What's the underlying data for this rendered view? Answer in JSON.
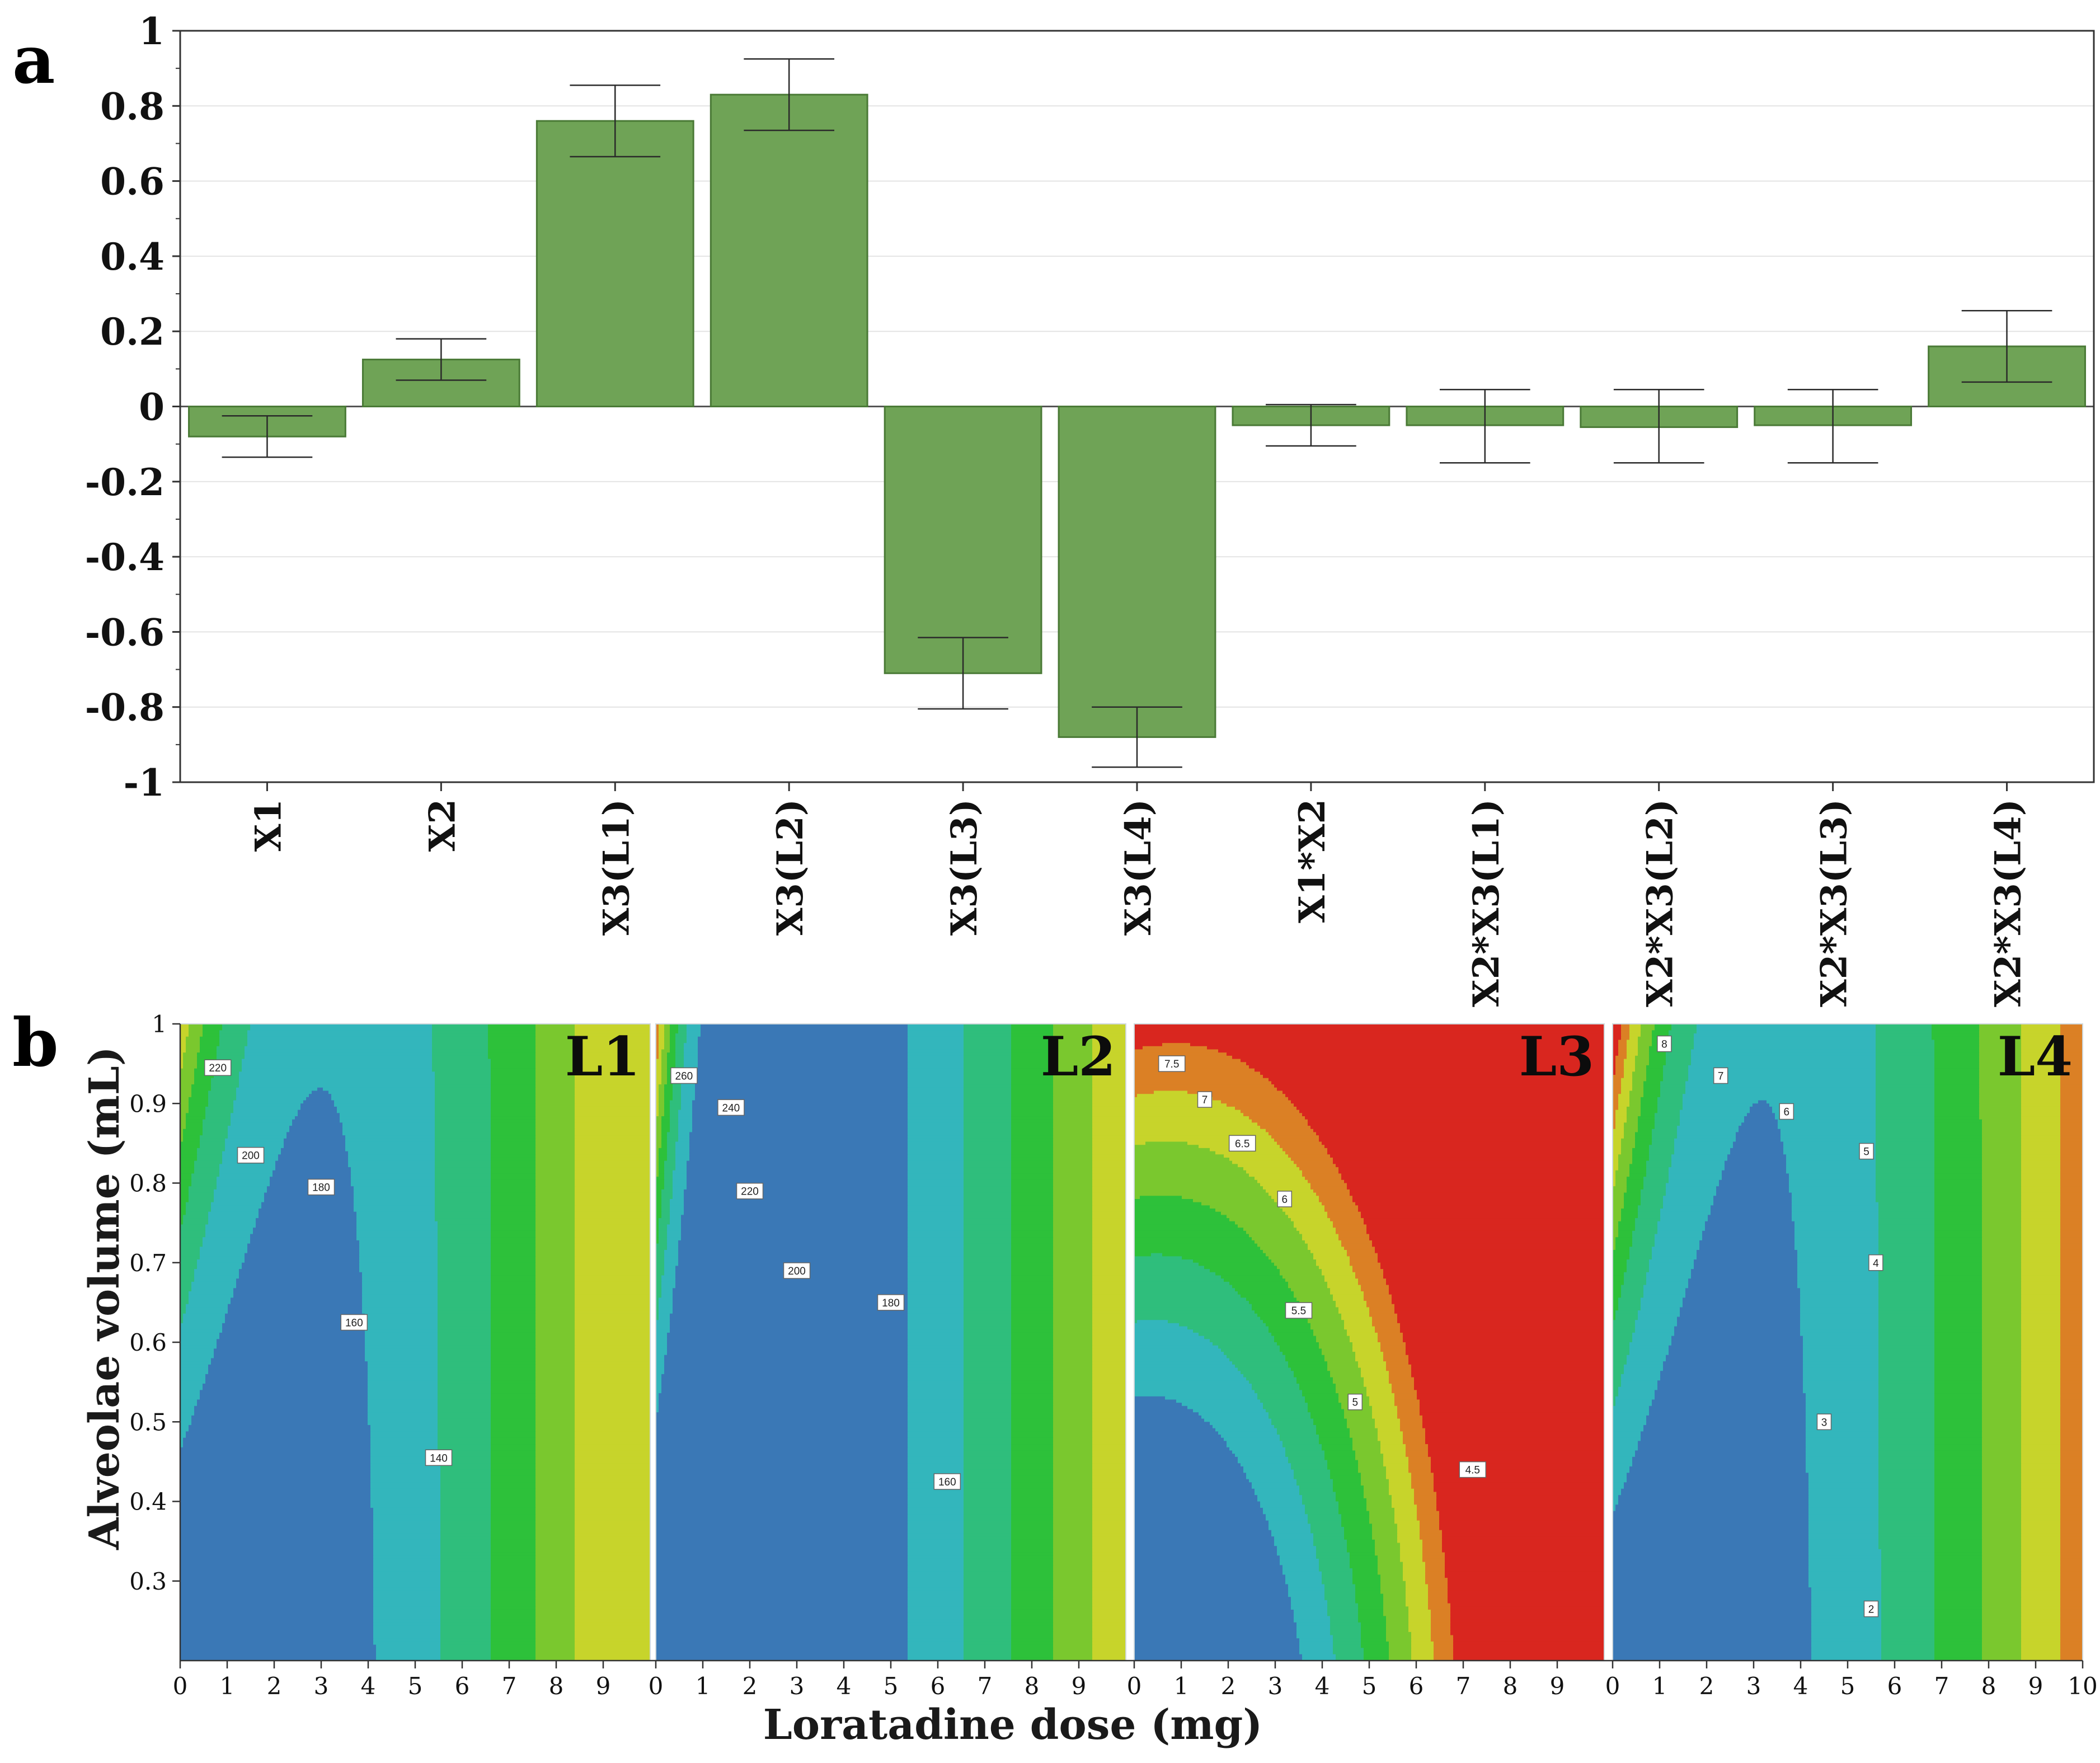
{
  "colors": {
    "bar_fill": "#6fa356",
    "bar_stroke": "#4a7a36",
    "grid": "#e4e4e4",
    "axis": "#333333",
    "contour": [
      "#3a78b6",
      "#33b6bc",
      "#2fbe7c",
      "#2dc13a",
      "#7ac82e",
      "#c7d42b",
      "#db8025",
      "#d9261f"
    ]
  },
  "chart_data": [
    {
      "id": "a",
      "type": "bar",
      "panel_label": "a",
      "title": "",
      "xlabel": "",
      "ylabel": "",
      "ylim": [
        -1,
        1
      ],
      "yticks": [
        1,
        0.8,
        0.6,
        0.4,
        0.2,
        0,
        -0.2,
        -0.4,
        -0.6,
        -0.8,
        -1
      ],
      "ytick_labels": [
        "1",
        "0.8",
        "0.6",
        "0.4",
        "0.2",
        "0",
        "-0.2",
        "-0.4",
        "-0.6",
        "-0.8",
        "-1"
      ],
      "grid": true,
      "categories": [
        "X1",
        "X2",
        "X3(L1)",
        "X3(L2)",
        "X3(L3)",
        "X3(L4)",
        "X1*X2",
        "X2*X3(L1)",
        "X2*X3(L2)",
        "X2*X3(L3)",
        "X2*X3(L4)"
      ],
      "values": [
        -0.08,
        0.125,
        0.76,
        0.83,
        -0.71,
        -0.88,
        -0.05,
        -0.05,
        -0.055,
        -0.05,
        0.16
      ],
      "error_low": [
        -0.135,
        0.07,
        0.665,
        0.735,
        -0.805,
        -0.96,
        -0.105,
        -0.15,
        -0.15,
        -0.15,
        0.065
      ],
      "error_high": [
        -0.025,
        0.18,
        0.855,
        0.925,
        -0.615,
        -0.8,
        0.005,
        0.045,
        0.045,
        0.045,
        0.255
      ]
    },
    {
      "id": "b",
      "type": "contour",
      "panel_label": "b",
      "xlabel": "Loratadine dose (mg)",
      "ylabel": "Alveolae volume (mL)",
      "xlim": [
        0,
        10
      ],
      "ylim": [
        0.2,
        1
      ],
      "xticks": [
        0,
        1,
        2,
        3,
        4,
        5,
        6,
        7,
        8,
        9
      ],
      "xtick_labels_last_panel": [
        "0",
        "1",
        "2",
        "3",
        "4",
        "5",
        "6",
        "7",
        "8",
        "9",
        "10"
      ],
      "yticks": [
        0.3,
        0.4,
        0.5,
        0.6,
        0.7,
        0.8,
        0.9,
        1
      ],
      "ytick_labels": [
        "0.3",
        "0.4",
        "0.5",
        "0.6",
        "0.7",
        "0.8",
        "0.9",
        "1"
      ],
      "panels": [
        {
          "name": "L1",
          "levels": [
            140,
            160,
            180,
            200,
            220
          ],
          "start_class": 0,
          "model": {
            "a": 114,
            "b": 1.5,
            "c": 121,
            "d": 0.7
          },
          "labels": [
            {
              "text": "220",
              "x": 0.8,
              "y": 0.945
            },
            {
              "text": "200",
              "x": 1.5,
              "y": 0.835
            },
            {
              "text": "180",
              "x": 3.0,
              "y": 0.795
            },
            {
              "text": "160",
              "x": 3.7,
              "y": 0.625
            },
            {
              "text": "140",
              "x": 5.5,
              "y": 0.455
            }
          ]
        },
        {
          "name": "L2",
          "levels": [
            160,
            180,
            200,
            220,
            240,
            260
          ],
          "start_class": 0,
          "model": {
            "a": 120,
            "b": 1.4,
            "c": 160,
            "d": 1.5
          },
          "labels": [
            {
              "text": "260",
              "x": 0.6,
              "y": 0.935
            },
            {
              "text": "240",
              "x": 1.6,
              "y": 0.895
            },
            {
              "text": "220",
              "x": 2.0,
              "y": 0.79
            },
            {
              "text": "200",
              "x": 3.0,
              "y": 0.69
            },
            {
              "text": "180",
              "x": 5.0,
              "y": 0.65
            },
            {
              "text": "160",
              "x": 6.2,
              "y": 0.425
            }
          ]
        },
        {
          "name": "L3",
          "levels": [
            4.5,
            5,
            5.5,
            6,
            6.5,
            7,
            7.5
          ],
          "start_class": 0,
          "model": {
            "a": 3.2,
            "b": 0.09,
            "c": 4.6,
            "d": 0.0375
          },
          "labels": [
            {
              "text": "7.5",
              "x": 0.8,
              "y": 0.95
            },
            {
              "text": "7",
              "x": 1.5,
              "y": 0.905
            },
            {
              "text": "6.5",
              "x": 2.3,
              "y": 0.85
            },
            {
              "text": "6",
              "x": 3.2,
              "y": 0.78
            },
            {
              "text": "5.5",
              "x": 3.5,
              "y": 0.64
            },
            {
              "text": "5",
              "x": 4.7,
              "y": 0.525
            },
            {
              "text": "4.5",
              "x": 7.2,
              "y": 0.44
            }
          ]
        },
        {
          "name": "L4",
          "levels": [
            2,
            3,
            4,
            5,
            6,
            7,
            8
          ],
          "start_class": 0,
          "model": {
            "a": 0.76,
            "b": 0.069,
            "c": 8.46,
            "d": 0.8
          },
          "labels": [
            {
              "text": "8",
              "x": 1.1,
              "y": 0.975
            },
            {
              "text": "7",
              "x": 2.3,
              "y": 0.935
            },
            {
              "text": "6",
              "x": 3.7,
              "y": 0.89
            },
            {
              "text": "5",
              "x": 5.4,
              "y": 0.84
            },
            {
              "text": "4",
              "x": 5.6,
              "y": 0.7
            },
            {
              "text": "3",
              "x": 4.5,
              "y": 0.5
            },
            {
              "text": "2",
              "x": 5.5,
              "y": 0.265
            }
          ]
        }
      ]
    }
  ]
}
